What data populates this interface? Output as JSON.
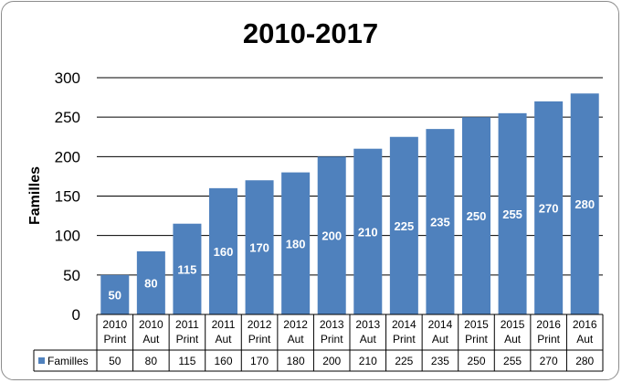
{
  "chart_data": {
    "type": "bar",
    "title": "2010-2017",
    "ylabel": "Familles",
    "xlabel": "",
    "ylim": [
      0,
      300
    ],
    "yticks": [
      0,
      50,
      100,
      150,
      200,
      250,
      300
    ],
    "grid": true,
    "legend": "data-table",
    "categories": [
      [
        "2010",
        "Print"
      ],
      [
        "2010",
        "Aut"
      ],
      [
        "2011",
        "Print"
      ],
      [
        "2011",
        "Aut"
      ],
      [
        "2012",
        "Print"
      ],
      [
        "2012",
        "Aut"
      ],
      [
        "2013",
        "Print"
      ],
      [
        "2013",
        "Aut"
      ],
      [
        "2014",
        "Print"
      ],
      [
        "2014",
        "Aut"
      ],
      [
        "2015",
        "Print"
      ],
      [
        "2015",
        "Aut"
      ],
      [
        "2016",
        "Print"
      ],
      [
        "2016",
        "Aut"
      ]
    ],
    "series": [
      {
        "name": "Familles",
        "color": "#4f81bd",
        "values": [
          50,
          80,
          115,
          160,
          170,
          180,
          200,
          210,
          225,
          235,
          250,
          255,
          270,
          280
        ]
      }
    ]
  }
}
